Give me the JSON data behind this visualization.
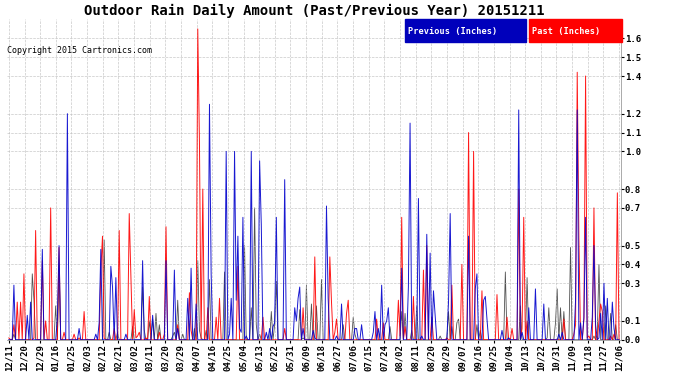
{
  "title": "Outdoor Rain Daily Amount (Past/Previous Year) 20151211",
  "copyright": "Copyright 2015 Cartronics.com",
  "legend_previous": "Previous (Inches)",
  "legend_past": "Past (Inches)",
  "ylim": [
    0.0,
    1.7
  ],
  "yticks": [
    0.0,
    0.1,
    0.3,
    0.4,
    0.5,
    0.7,
    0.8,
    1.0,
    1.1,
    1.2,
    1.4,
    1.5,
    1.6
  ],
  "background_color": "#FFFFFF",
  "plot_bg_color": "#FFFFFF",
  "grid_color": "#BBBBBB",
  "line_previous_color": "#0000CC",
  "line_past_color": "#FF0000",
  "line_dark_color": "#333333",
  "title_fontsize": 10,
  "tick_fontsize": 6.5,
  "copyright_fontsize": 6,
  "x_labels": [
    "12/11",
    "12/20",
    "12/29",
    "01/16",
    "01/25",
    "02/03",
    "02/12",
    "02/21",
    "03/02",
    "03/11",
    "03/20",
    "03/29",
    "04/07",
    "04/16",
    "04/25",
    "05/04",
    "05/13",
    "05/22",
    "05/31",
    "06/09",
    "06/18",
    "06/27",
    "07/06",
    "07/15",
    "07/24",
    "08/02",
    "08/11",
    "08/20",
    "08/29",
    "09/07",
    "09/16",
    "09/25",
    "10/04",
    "10/13",
    "10/22",
    "10/31",
    "11/09",
    "11/18",
    "11/27",
    "12/06"
  ],
  "n_points": 366,
  "previous_seed": 101,
  "past_seed": 202,
  "dark_seed": 303
}
